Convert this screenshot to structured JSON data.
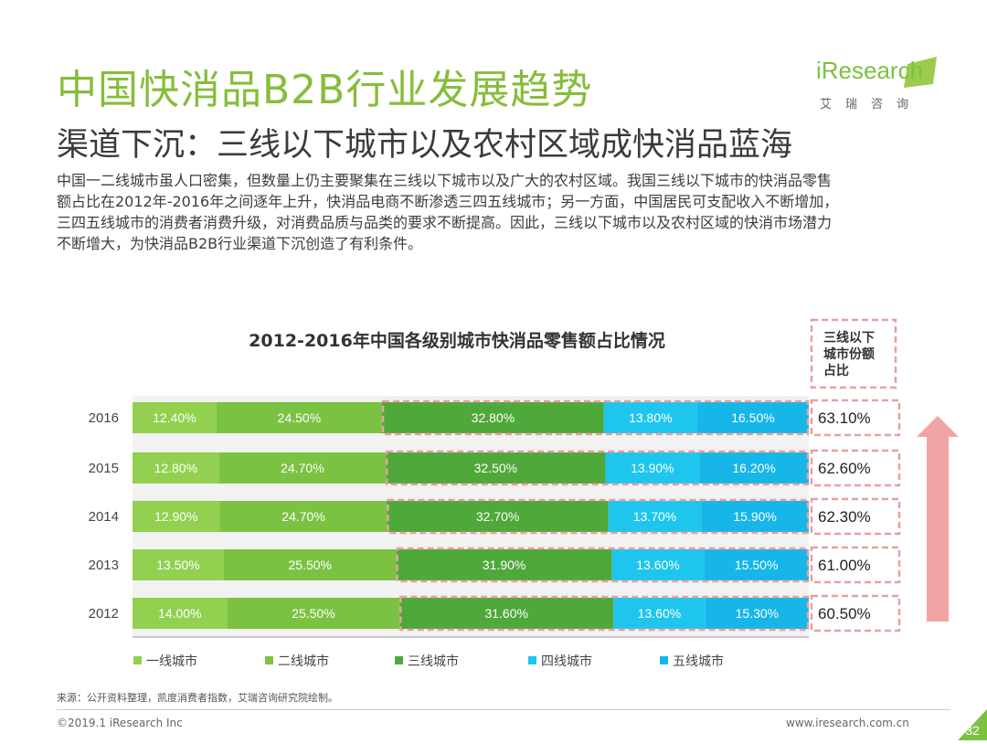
{
  "header": {
    "title": "中国快消品B2B行业发展趋势",
    "subtitle": "渠道下沉：三线以下城市以及农村区域成快消品蓝海"
  },
  "paragraph": {
    "lines": [
      "中国一二线城市虽人口密集，但数量上仍主要聚集在三线以下城市以及广大的农村区域。我国三线以下城市的快消品零售",
      "额占比在2012年-2016年之间逐年上升，快消品电商不断渗透三四五线城市；另一方面，中国居民可支配收入不断增加，",
      "三四五线城市的消费者消费升级，对消费品质与品类的要求不断提高。因此，三线以下城市以及农村区域的快消市场潜力",
      "不断增大，为快消品B2B行业渠道下沉创造了有利条件。"
    ]
  },
  "logo": {
    "brand": "iResearch",
    "sub": "艾瑞咨询"
  },
  "chart_data": {
    "type": "bar",
    "orientation": "horizontal",
    "stacked": true,
    "title": "2012-2016年中国各级别城市快消品零售额占比情况",
    "categories": [
      "2016",
      "2015",
      "2014",
      "2013",
      "2012"
    ],
    "series": [
      {
        "name": "一线城市",
        "color": "#92d050",
        "values": [
          12.4,
          12.8,
          12.9,
          13.5,
          14.0
        ],
        "labels": [
          "12.40%",
          "12.80%",
          "12.90%",
          "13.50%",
          "14.00%"
        ]
      },
      {
        "name": "二线城市",
        "color": "#7cc242",
        "values": [
          24.5,
          24.7,
          24.7,
          25.5,
          25.5
        ],
        "labels": [
          "24.50%",
          "24.70%",
          "24.70%",
          "25.50%",
          "25.50%"
        ]
      },
      {
        "name": "三线城市",
        "color": "#4fa83a",
        "values": [
          32.8,
          32.5,
          32.7,
          31.9,
          31.6
        ],
        "labels": [
          "32.80%",
          "32.50%",
          "32.70%",
          "31.90%",
          "31.60%"
        ]
      },
      {
        "name": "四线城市",
        "color": "#1ec6ee",
        "values": [
          13.8,
          13.9,
          13.7,
          13.6,
          13.6
        ],
        "labels": [
          "13.80%",
          "13.90%",
          "13.70%",
          "13.60%",
          "13.60%"
        ]
      },
      {
        "name": "五线城市",
        "color": "#16b6e8",
        "values": [
          16.5,
          16.2,
          15.9,
          15.5,
          15.3
        ],
        "labels": [
          "16.50%",
          "16.20%",
          "15.90%",
          "15.50%",
          "15.30%"
        ]
      }
    ],
    "side_header": "三线以下城市份额占比",
    "side_values": [
      63.1,
      62.6,
      62.3,
      61.0,
      60.5
    ],
    "side_labels": [
      "63.10%",
      "62.60%",
      "62.30%",
      "61.00%",
      "60.50%"
    ],
    "xlim": [
      0,
      100
    ],
    "grid": false,
    "legend": "bottom",
    "colors": {
      "highlight": "#e9a0a0",
      "arrow": "#f2a3a3"
    }
  },
  "footer": {
    "source": "来源：公开资料整理，凯度消费者指数，艾瑞咨询研究院绘制。",
    "copyright": "©2019.1 iResearch Inc",
    "url": "www.iresearch.com.cn",
    "page": "32"
  },
  "colors": {
    "accent": "#86bd3a",
    "page_badge": "#7dc142"
  }
}
